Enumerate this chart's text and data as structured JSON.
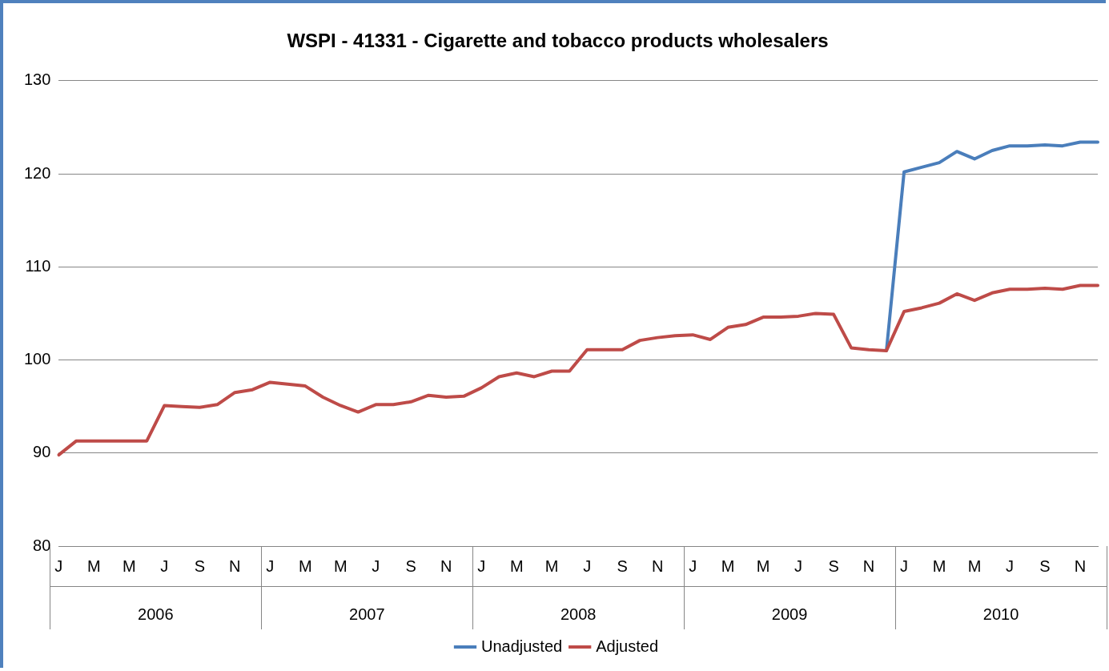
{
  "chart_data": {
    "type": "line",
    "title": "WSPI - 41331 - Cigarette and tobacco products wholesalers",
    "categories": [
      "J",
      null,
      "M",
      null,
      "M",
      null,
      "J",
      null,
      "S",
      null,
      "N",
      null,
      "J",
      null,
      "M",
      null,
      "M",
      null,
      "J",
      null,
      "S",
      null,
      "N",
      null,
      "J",
      null,
      "M",
      null,
      "M",
      null,
      "J",
      null,
      "S",
      null,
      "N",
      null,
      "J",
      null,
      "M",
      null,
      "M",
      null,
      "J",
      null,
      "S",
      null,
      "N",
      null,
      "J",
      null,
      "M",
      null,
      "M",
      null,
      "J",
      null,
      "S",
      null,
      "N",
      null
    ],
    "annotations": [
      "2006",
      "2007",
      "2008",
      "2009",
      "2010"
    ],
    "series": [
      {
        "name": "Unadjusted",
        "color": "#4a7ebb",
        "values": [
          null,
          null,
          null,
          null,
          null,
          null,
          null,
          null,
          null,
          null,
          null,
          null,
          null,
          null,
          null,
          null,
          null,
          null,
          null,
          null,
          null,
          null,
          null,
          null,
          null,
          null,
          null,
          null,
          null,
          null,
          null,
          null,
          null,
          null,
          null,
          null,
          null,
          null,
          null,
          null,
          null,
          null,
          null,
          null,
          null,
          null,
          null,
          101.0,
          120.2,
          120.7,
          121.2,
          122.4,
          121.6,
          122.5,
          123.0,
          123.0,
          123.1,
          123.0,
          123.4,
          123.4
        ]
      },
      {
        "name": "Adjusted",
        "color": "#be4b48",
        "values": [
          89.8,
          91.3,
          91.3,
          91.3,
          91.3,
          91.3,
          95.1,
          95.0,
          94.9,
          95.2,
          96.5,
          96.8,
          97.6,
          97.4,
          97.2,
          96.0,
          95.1,
          94.4,
          95.2,
          95.2,
          95.5,
          96.2,
          96.0,
          96.1,
          97.0,
          98.2,
          98.6,
          98.2,
          98.8,
          98.8,
          101.1,
          101.1,
          101.1,
          102.1,
          102.4,
          102.6,
          102.7,
          102.2,
          103.5,
          103.8,
          104.6,
          104.6,
          104.7,
          105.0,
          104.9,
          101.3,
          101.1,
          101.0,
          105.2,
          105.6,
          106.1,
          107.1,
          106.4,
          107.2,
          107.6,
          107.6,
          107.7,
          107.6,
          108.0,
          108.0
        ]
      }
    ],
    "ylim": [
      80,
      130
    ],
    "yticks": [
      80,
      90,
      100,
      110,
      120,
      130
    ],
    "grid": "y",
    "legend": "bottom",
    "marker": "none",
    "line_style": "solid"
  }
}
